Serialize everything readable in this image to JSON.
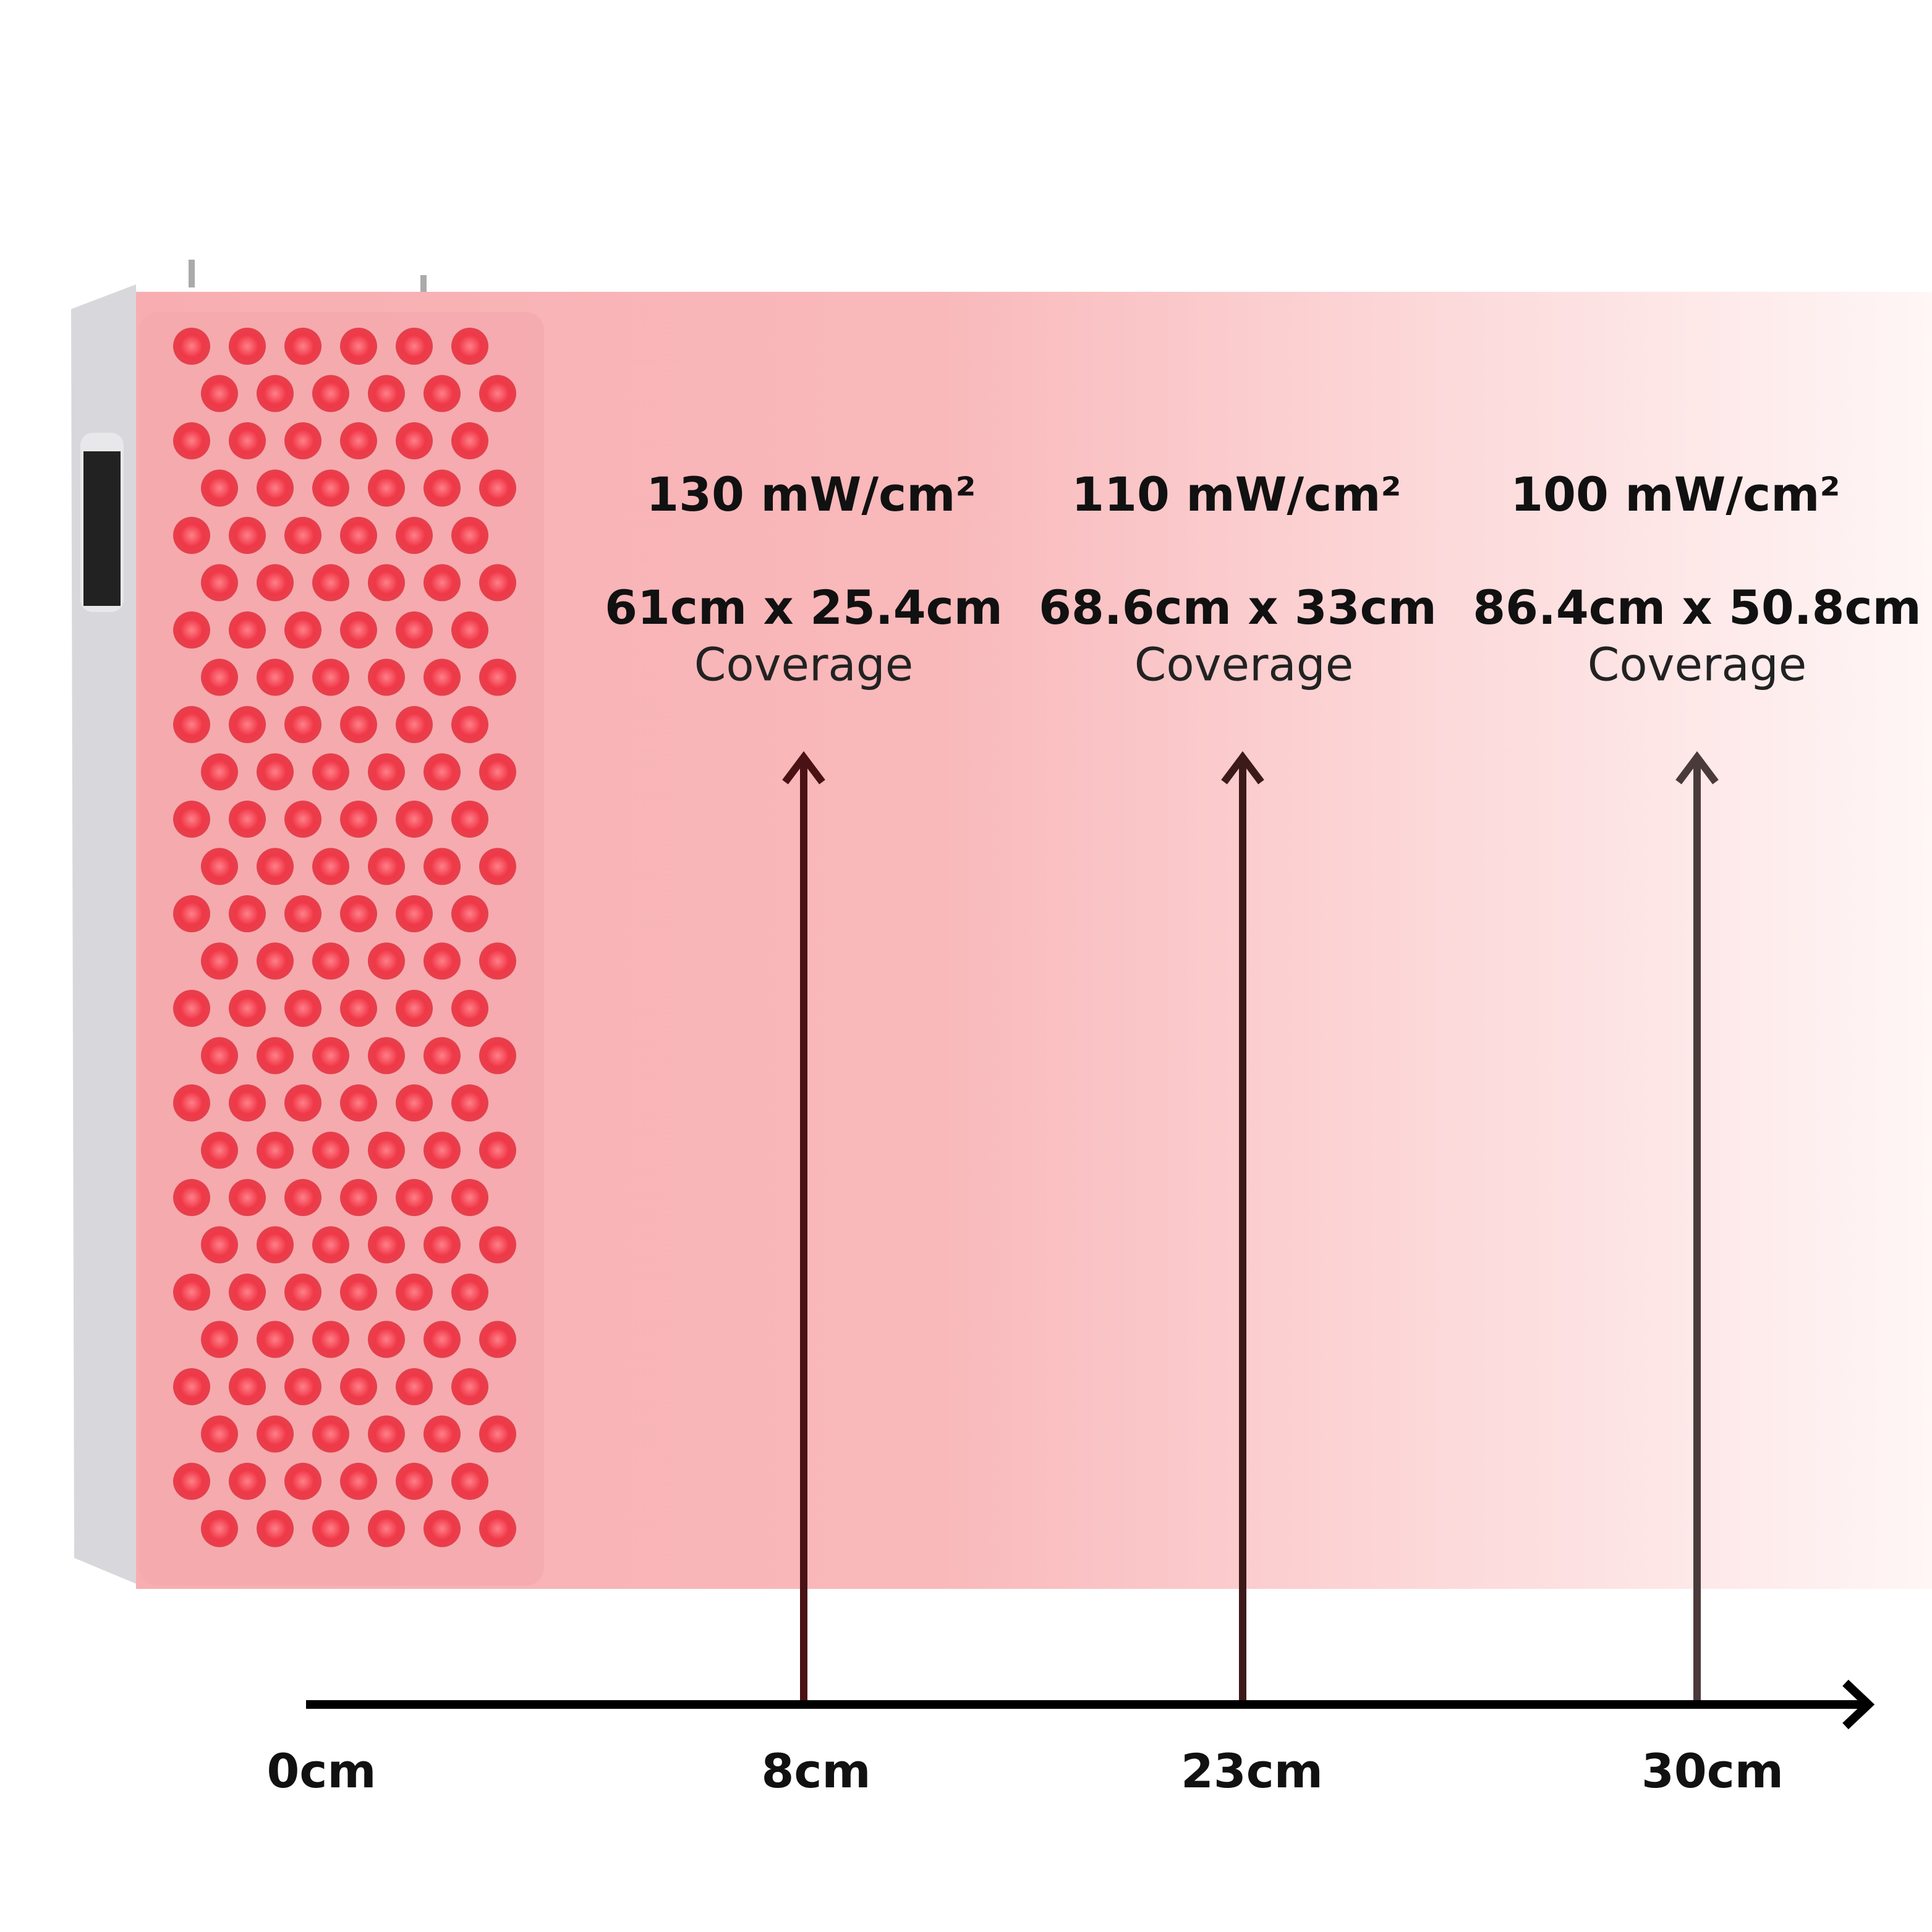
{
  "zones": [
    {
      "irradiance": "130 mW/cm²",
      "size": "61cm x 25.4cm",
      "label": "Coverage"
    },
    {
      "irradiance": "110 mW/cm²",
      "size": "68.6cm x 33cm",
      "label": "Coverage"
    },
    {
      "irradiance": "100 mW/cm²",
      "size": "86.4cm x 50.8cm",
      "label": "Coverage"
    }
  ],
  "distances": [
    "0cm",
    "8cm",
    "23cm",
    "30cm"
  ]
}
